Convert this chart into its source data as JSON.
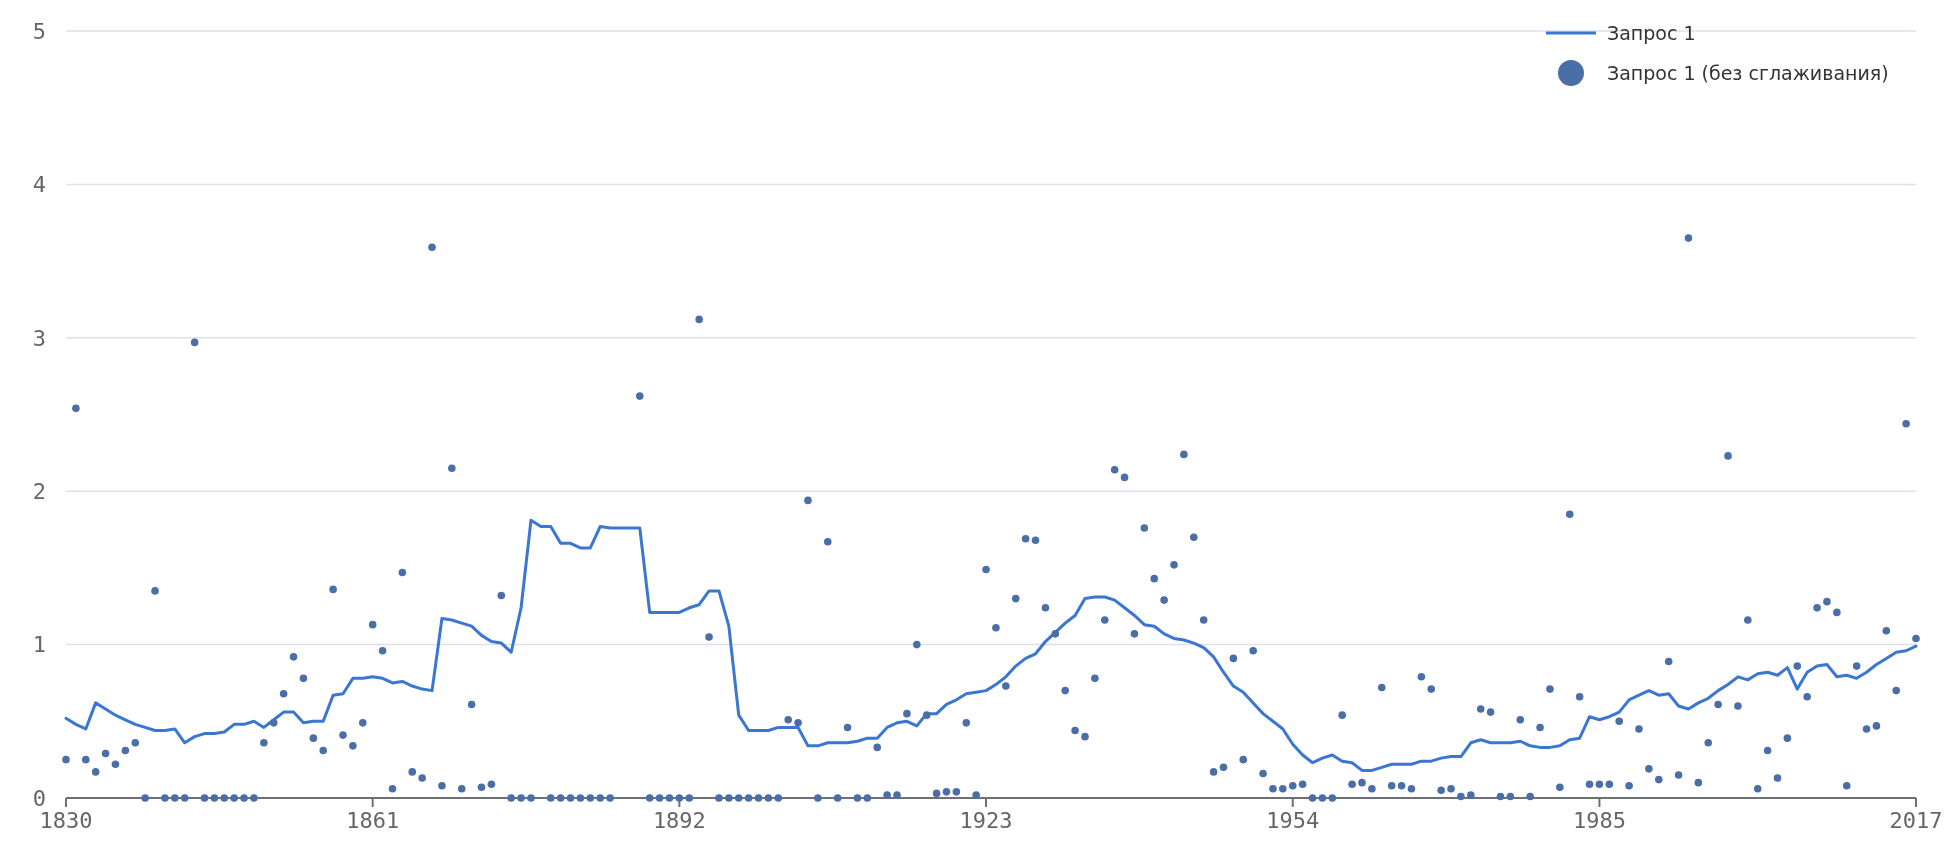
{
  "chart_data": {
    "type": "line",
    "x": [
      1830,
      1831,
      1832,
      1833,
      1834,
      1835,
      1836,
      1837,
      1838,
      1839,
      1840,
      1841,
      1842,
      1843,
      1844,
      1845,
      1846,
      1847,
      1848,
      1849,
      1850,
      1851,
      1852,
      1853,
      1854,
      1855,
      1856,
      1857,
      1858,
      1859,
      1860,
      1861,
      1862,
      1863,
      1864,
      1865,
      1866,
      1867,
      1868,
      1869,
      1870,
      1871,
      1872,
      1873,
      1874,
      1875,
      1876,
      1877,
      1878,
      1879,
      1880,
      1881,
      1882,
      1883,
      1884,
      1885,
      1886,
      1887,
      1888,
      1889,
      1890,
      1891,
      1892,
      1893,
      1894,
      1895,
      1896,
      1897,
      1898,
      1899,
      1900,
      1901,
      1902,
      1903,
      1904,
      1905,
      1906,
      1907,
      1908,
      1909,
      1910,
      1911,
      1912,
      1913,
      1914,
      1915,
      1916,
      1917,
      1918,
      1919,
      1920,
      1921,
      1922,
      1923,
      1924,
      1925,
      1926,
      1927,
      1928,
      1929,
      1930,
      1931,
      1932,
      1933,
      1934,
      1935,
      1936,
      1937,
      1938,
      1939,
      1940,
      1941,
      1942,
      1943,
      1944,
      1945,
      1946,
      1947,
      1948,
      1949,
      1950,
      1951,
      1952,
      1953,
      1954,
      1955,
      1956,
      1957,
      1958,
      1959,
      1960,
      1961,
      1962,
      1963,
      1964,
      1965,
      1966,
      1967,
      1968,
      1969,
      1970,
      1971,
      1972,
      1973,
      1974,
      1975,
      1976,
      1977,
      1978,
      1979,
      1980,
      1981,
      1982,
      1983,
      1984,
      1985,
      1986,
      1987,
      1988,
      1989,
      1990,
      1991,
      1992,
      1993,
      1994,
      1995,
      1996,
      1997,
      1998,
      1999,
      2000,
      2001,
      2002,
      2003,
      2004,
      2005,
      2006,
      2007,
      2008,
      2009,
      2010,
      2011,
      2012,
      2013,
      2014,
      2015,
      2016,
      2017
    ],
    "series": [
      {
        "name": "Запрос 1",
        "color": "#3a76d2",
        "values": [
          0.52,
          0.48,
          0.45,
          0.62,
          0.58,
          0.54,
          0.51,
          0.48,
          0.46,
          0.44,
          0.44,
          0.45,
          0.36,
          0.4,
          0.42,
          0.42,
          0.43,
          0.48,
          0.48,
          0.5,
          0.46,
          0.51,
          0.56,
          0.56,
          0.49,
          0.5,
          0.5,
          0.67,
          0.68,
          0.78,
          0.78,
          0.79,
          0.78,
          0.75,
          0.76,
          0.73,
          0.71,
          0.7,
          1.17,
          1.16,
          1.14,
          1.12,
          1.06,
          1.02,
          1.01,
          0.95,
          1.24,
          1.81,
          1.77,
          1.77,
          1.66,
          1.66,
          1.63,
          1.63,
          1.77,
          1.76,
          1.76,
          1.76,
          1.76,
          1.21,
          1.21,
          1.21,
          1.21,
          1.24,
          1.26,
          1.35,
          1.35,
          1.12,
          0.54,
          0.44,
          0.44,
          0.44,
          0.46,
          0.46,
          0.46,
          0.34,
          0.34,
          0.36,
          0.36,
          0.36,
          0.37,
          0.39,
          0.39,
          0.46,
          0.49,
          0.5,
          0.47,
          0.55,
          0.55,
          0.61,
          0.64,
          0.68,
          0.69,
          0.7,
          0.74,
          0.79,
          0.86,
          0.91,
          0.94,
          1.02,
          1.08,
          1.14,
          1.19,
          1.3,
          1.31,
          1.31,
          1.29,
          1.24,
          1.19,
          1.13,
          1.12,
          1.07,
          1.04,
          1.03,
          1.01,
          0.98,
          0.92,
          0.82,
          0.73,
          0.69,
          0.62,
          0.55,
          0.5,
          0.45,
          0.35,
          0.28,
          0.23,
          0.26,
          0.28,
          0.24,
          0.23,
          0.18,
          0.18,
          0.2,
          0.22,
          0.22,
          0.22,
          0.24,
          0.24,
          0.26,
          0.27,
          0.27,
          0.36,
          0.38,
          0.36,
          0.36,
          0.36,
          0.37,
          0.34,
          0.33,
          0.33,
          0.34,
          0.38,
          0.39,
          0.53,
          0.51,
          0.53,
          0.56,
          0.64,
          0.67,
          0.7,
          0.67,
          0.68,
          0.6,
          0.58,
          0.62,
          0.65,
          0.7,
          0.74,
          0.79,
          0.77,
          0.81,
          0.82,
          0.8,
          0.85,
          0.71,
          0.82,
          0.86,
          0.87,
          0.79,
          0.8,
          0.78,
          0.82,
          0.87,
          0.91,
          0.95,
          0.96,
          0.99
        ]
      },
      {
        "name": "Запрос 1 (без сглаживания)",
        "type": "scatter",
        "color": "#4a6ea6",
        "values": [
          0.25,
          2.54,
          0.25,
          0.17,
          0.29,
          0.22,
          0.31,
          0.36,
          0,
          1.35,
          0,
          0,
          0,
          2.97,
          0,
          0,
          0,
          0,
          0,
          0,
          0.36,
          0.49,
          0.68,
          0.92,
          0.78,
          0.39,
          0.31,
          1.36,
          0.41,
          0.34,
          0.49,
          1.13,
          0.96,
          0.06,
          1.47,
          0.17,
          0.13,
          3.59,
          0.08,
          2.15,
          0.06,
          0.61,
          0.07,
          0.09,
          1.32,
          0,
          0,
          0,
          null,
          0,
          0,
          0,
          0,
          0,
          0,
          0,
          null,
          null,
          2.62,
          0,
          0,
          0,
          0,
          0,
          3.12,
          1.05,
          0,
          0,
          0,
          0,
          0,
          0,
          0,
          0.51,
          0.49,
          1.94,
          0,
          1.67,
          0,
          0.46,
          0,
          0,
          0.33,
          0.02,
          0.02,
          0.55,
          1.0,
          0.54,
          0.03,
          0.04,
          0.04,
          0.49,
          0.02,
          1.49,
          1.11,
          0.73,
          1.3,
          1.69,
          1.68,
          1.24,
          1.07,
          0.7,
          0.44,
          0.4,
          0.78,
          1.16,
          2.14,
          2.09,
          1.07,
          1.76,
          1.43,
          1.29,
          1.52,
          2.24,
          1.7,
          1.16,
          0.17,
          0.2,
          0.91,
          0.25,
          0.96,
          0.16,
          0.06,
          0.06,
          0.08,
          0.09,
          0,
          0,
          0,
          0.54,
          0.09,
          0.1,
          0.06,
          0.72,
          0.08,
          0.08,
          0.06,
          0.79,
          0.71,
          0.05,
          0.06,
          0.01,
          0.02,
          0.58,
          0.56,
          0.01,
          0.01,
          0.51,
          0.01,
          0.46,
          0.71,
          0.07,
          1.85,
          0.66,
          0.09,
          0.09,
          0.09,
          0.5,
          0.08,
          0.45,
          0.19,
          0.12,
          0.89,
          0.15,
          3.65,
          0.1,
          0.36,
          0.61,
          2.23,
          0.6,
          1.16,
          0.06,
          0.31,
          0.13,
          0.39,
          0.86,
          0.66,
          1.24,
          1.28,
          1.21,
          0.08,
          0.86,
          0.45,
          0.47,
          1.09,
          0.7,
          2.44,
          1.04
        ]
      }
    ],
    "xlim": [
      1830,
      2017
    ],
    "xticks": [
      1830,
      1861,
      1892,
      1923,
      1954,
      1985,
      2017
    ],
    "ylim": [
      0,
      5
    ],
    "yticks": [
      0,
      1,
      2,
      3,
      4,
      5
    ],
    "grid": "y",
    "legend": "top right"
  }
}
